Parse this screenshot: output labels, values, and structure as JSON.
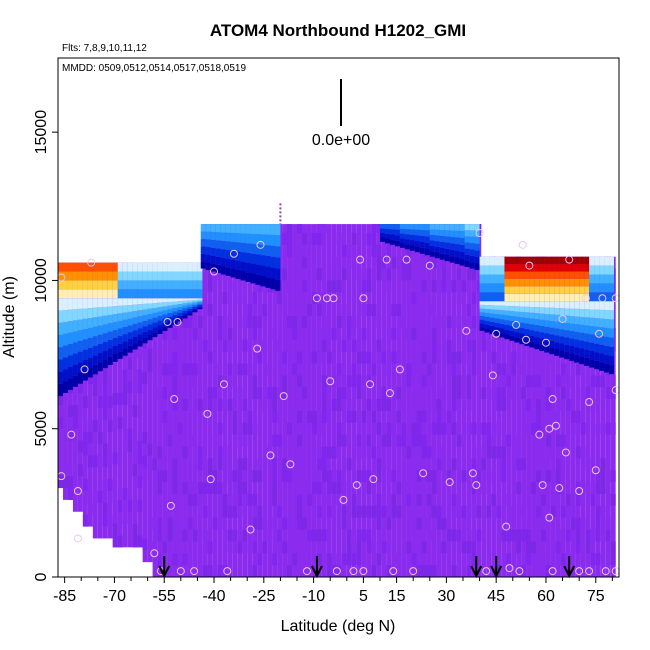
{
  "chart_data": {
    "type": "heatmap",
    "title": "ATOM4 Northbound H1202_GMI",
    "subtitle_flights": "Flts: 7,8,9,10,11,12",
    "subtitle_dates": "MMDD: 0509,0512,0514,0517,0518,0519",
    "xlabel": "Latitude (deg N)",
    "ylabel": "Altitude (m)",
    "xlim": [
      -87,
      82
    ],
    "ylim": [
      0,
      17500
    ],
    "x_ticks": [
      -85,
      -70,
      -55,
      -40,
      -25,
      -10,
      5,
      15,
      30,
      45,
      60,
      75
    ],
    "x_tick_labels": [
      "-85",
      "-70",
      "-55",
      "-40",
      "-25",
      "-10",
      "5",
      "15",
      "30",
      "45",
      "60",
      "75"
    ],
    "x_minor_ticks": [
      -80,
      -75,
      -65,
      -60,
      -50,
      -45,
      -35,
      -30,
      -20,
      -15,
      -5,
      0,
      10,
      20,
      25,
      35,
      40,
      50,
      55,
      65,
      70,
      80
    ],
    "y_ticks": [
      0,
      5000,
      10000,
      15000
    ],
    "y_tick_labels": [
      "0",
      "5000",
      "10000",
      "15000"
    ],
    "scale_bar_label": "0.0e+00",
    "colors": {
      "background_fill": "#8B2BEE",
      "marker_outline": "#E8C8F0",
      "arrow": "#000000"
    },
    "arrows_latitude": [
      -55,
      -9,
      39,
      45,
      67
    ],
    "tropopause_mark_latitude": -20,
    "observation_points": [
      [
        -86,
        3400
      ],
      [
        -86,
        10100
      ],
      [
        -83,
        4800
      ],
      [
        -81,
        2900
      ],
      [
        -81,
        1300
      ],
      [
        -79,
        7000
      ],
      [
        -77,
        10600
      ],
      [
        -58,
        800
      ],
      [
        -56,
        200
      ],
      [
        -54,
        8600
      ],
      [
        -53,
        2400
      ],
      [
        -52,
        6000
      ],
      [
        -51,
        8600
      ],
      [
        -50,
        200
      ],
      [
        -46,
        200
      ],
      [
        -42,
        5500
      ],
      [
        -41,
        3300
      ],
      [
        -40,
        10300
      ],
      [
        -37,
        6500
      ],
      [
        -36,
        200
      ],
      [
        -34,
        10900
      ],
      [
        -29,
        1600
      ],
      [
        -27,
        7700
      ],
      [
        -26,
        11200
      ],
      [
        -23,
        4100
      ],
      [
        -19,
        6100
      ],
      [
        -17,
        3800
      ],
      [
        -12,
        200
      ],
      [
        -9,
        9400
      ],
      [
        -6,
        9400
      ],
      [
        -5,
        6600
      ],
      [
        -4,
        9400
      ],
      [
        -3,
        200
      ],
      [
        -1,
        2600
      ],
      [
        2,
        200
      ],
      [
        3,
        3100
      ],
      [
        4,
        10700
      ],
      [
        5,
        200
      ],
      [
        5,
        9400
      ],
      [
        7,
        6500
      ],
      [
        8,
        3300
      ],
      [
        12,
        10700
      ],
      [
        13,
        6200
      ],
      [
        14,
        200
      ],
      [
        16,
        7000
      ],
      [
        18,
        10700
      ],
      [
        20,
        200
      ],
      [
        23,
        3500
      ],
      [
        25,
        10500
      ],
      [
        31,
        3200
      ],
      [
        36,
        8300
      ],
      [
        38,
        3500
      ],
      [
        39,
        3100
      ],
      [
        40,
        11600
      ],
      [
        42,
        200
      ],
      [
        44,
        6800
      ],
      [
        45,
        8200
      ],
      [
        48,
        1700
      ],
      [
        49,
        300
      ],
      [
        51,
        8500
      ],
      [
        52,
        200
      ],
      [
        53,
        11200
      ],
      [
        54,
        8000
      ],
      [
        55,
        10500
      ],
      [
        58,
        4800
      ],
      [
        59,
        3100
      ],
      [
        60,
        7900
      ],
      [
        61,
        2000
      ],
      [
        61,
        5000
      ],
      [
        62,
        200
      ],
      [
        62,
        6000
      ],
      [
        63,
        5100
      ],
      [
        64,
        3000
      ],
      [
        65,
        8700
      ],
      [
        66,
        4200
      ],
      [
        67,
        10700
      ],
      [
        70,
        200
      ],
      [
        70,
        2900
      ],
      [
        72,
        9400
      ],
      [
        73,
        200
      ],
      [
        73,
        5900
      ],
      [
        75,
        3600
      ],
      [
        76,
        8200
      ],
      [
        77,
        9400
      ],
      [
        78,
        200
      ],
      [
        81,
        6300
      ],
      [
        81,
        9400
      ],
      [
        81,
        200
      ]
    ]
  }
}
